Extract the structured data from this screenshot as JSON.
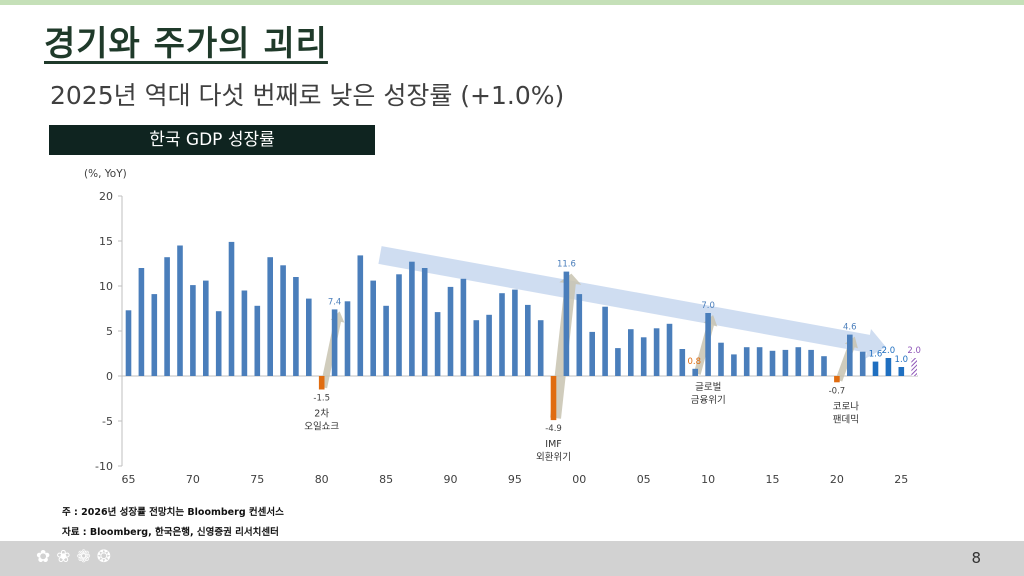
{
  "header": {
    "title": "경기와 주가의 괴리",
    "subtitle": "2025년 역대 다섯 번째로 낮은 성장률 (+1.0%)"
  },
  "chart_label": "한국 GDP 성장률",
  "footnote": "주 : 2026년 성장률 전망치는 Bloomberg 컨센서스",
  "source": "자료 : Bloomberg, 한국은행, 신영증권 리서치센터",
  "footer": {
    "page_number": "8",
    "icons": [
      "leaf-icon",
      "sprout-icon",
      "butterfly-icon",
      "apple-icon"
    ]
  },
  "chart_data": {
    "type": "bar",
    "title": "한국 GDP 성장률",
    "ylabel": "(%, YoY)",
    "ylim": [
      -10,
      20
    ],
    "yticks": [
      "20",
      "15",
      "10",
      "5",
      "0",
      "-5",
      "-10"
    ],
    "xticks": [
      "65",
      "70",
      "75",
      "80",
      "85",
      "90",
      "95",
      "00",
      "05",
      "10",
      "15",
      "20",
      "25"
    ],
    "grid": false,
    "colors": {
      "positive": "#4a7ebb",
      "negative": "#e06c10",
      "recent": "#1f6fc0",
      "forecast": "#8e55b8",
      "trend_arrow": "#c7d7ee",
      "event_arrow": "#c8c3b0"
    },
    "years": [
      1965,
      1966,
      1967,
      1968,
      1969,
      1970,
      1971,
      1972,
      1973,
      1974,
      1975,
      1976,
      1977,
      1978,
      1979,
      1980,
      1981,
      1982,
      1983,
      1984,
      1985,
      1986,
      1987,
      1988,
      1989,
      1990,
      1991,
      1992,
      1993,
      1994,
      1995,
      1996,
      1997,
      1998,
      1999,
      2000,
      2001,
      2002,
      2003,
      2004,
      2005,
      2006,
      2007,
      2008,
      2009,
      2010,
      2011,
      2012,
      2013,
      2014,
      2015,
      2016,
      2017,
      2018,
      2019,
      2020,
      2021,
      2022,
      2023,
      2024,
      2025,
      2026
    ],
    "values": [
      7.3,
      12.0,
      9.1,
      13.2,
      14.5,
      10.1,
      10.6,
      7.2,
      14.9,
      9.5,
      7.8,
      13.2,
      12.3,
      11.0,
      8.6,
      -1.5,
      7.4,
      8.3,
      13.4,
      10.6,
      7.8,
      11.3,
      12.7,
      12.0,
      7.1,
      9.9,
      10.8,
      6.2,
      6.8,
      9.2,
      9.6,
      7.9,
      6.2,
      -4.9,
      11.6,
      9.1,
      4.9,
      7.7,
      3.1,
      5.2,
      4.3,
      5.3,
      5.8,
      3.0,
      0.8,
      7.0,
      3.7,
      2.4,
      3.2,
      3.2,
      2.8,
      2.9,
      3.2,
      2.9,
      2.2,
      -0.7,
      4.6,
      2.7,
      1.6,
      2.0,
      1.0,
      2.0
    ],
    "value_labels": [
      {
        "year": 1981,
        "text": "7.4"
      },
      {
        "year": 1980,
        "text": "-1.5"
      },
      {
        "year": 1998,
        "text": "-4.9"
      },
      {
        "year": 1999,
        "text": "11.6"
      },
      {
        "year": 2009,
        "text": "0.8"
      },
      {
        "year": 2010,
        "text": "7.0"
      },
      {
        "year": 2020,
        "text": "-0.7"
      },
      {
        "year": 2021,
        "text": "4.6"
      },
      {
        "year": 2023,
        "text": "1.6"
      },
      {
        "year": 2024,
        "text": "2.0"
      },
      {
        "year": 2025,
        "text": "1.0"
      },
      {
        "year": 2026,
        "text": "2.0"
      }
    ],
    "annotations": [
      {
        "year": 1980,
        "lines": [
          "2차",
          "오일쇼크"
        ]
      },
      {
        "year": 1998,
        "lines": [
          "IMF",
          "외환위기"
        ]
      },
      {
        "year": 2009,
        "lines": [
          "글로벌",
          "금융위기"
        ]
      },
      {
        "year": 2020,
        "lines": [
          "코로나",
          "팬데믹"
        ]
      }
    ]
  }
}
